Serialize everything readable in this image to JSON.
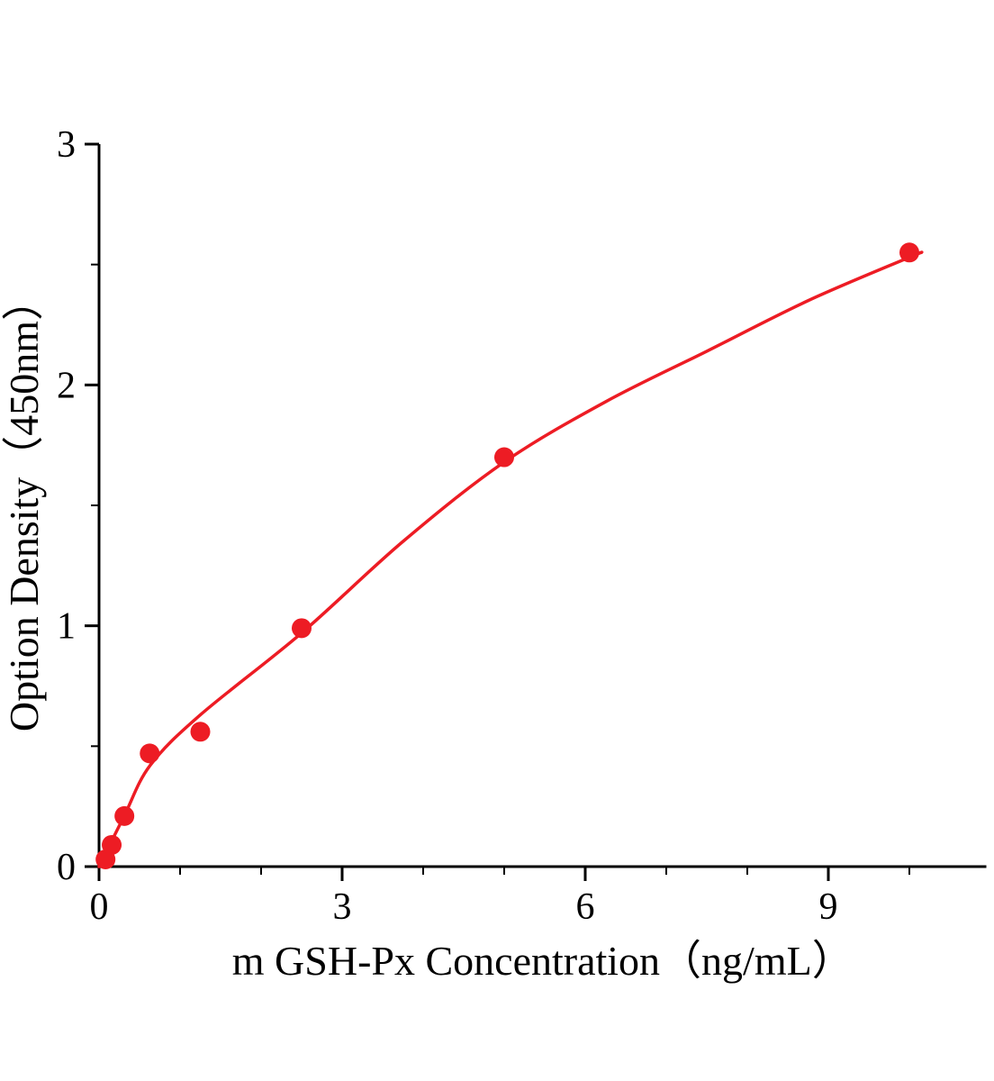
{
  "chart_data": {
    "type": "scatter",
    "title": "",
    "xlabel": "m GSH-Px Concentration（ng/mL）",
    "ylabel": "Option Density（450nm）",
    "xlim": [
      0,
      10.95
    ],
    "ylim": [
      0,
      3
    ],
    "xticks": [
      0,
      3,
      6,
      9
    ],
    "yticks": [
      0,
      1,
      2,
      3
    ],
    "x_minor_step": 1,
    "y_minor_step": 0.5,
    "grid": false,
    "legend": "none",
    "accent_color": "#ed1c24",
    "axis_color": "#000000",
    "points": [
      [
        0.08,
        0.03
      ],
      [
        0.156,
        0.09
      ],
      [
        0.313,
        0.21
      ],
      [
        0.625,
        0.47
      ],
      [
        1.25,
        0.56
      ],
      [
        2.5,
        0.99
      ],
      [
        5.0,
        1.7
      ],
      [
        10.0,
        2.55
      ]
    ],
    "curve_points": [
      [
        0,
        0
      ],
      [
        0.31,
        0.21
      ],
      [
        0.63,
        0.42
      ],
      [
        1.25,
        0.63
      ],
      [
        2.5,
        0.97
      ],
      [
        3.75,
        1.35
      ],
      [
        5.0,
        1.68
      ],
      [
        6.25,
        1.93
      ],
      [
        7.5,
        2.14
      ],
      [
        8.75,
        2.35
      ],
      [
        10.0,
        2.53
      ],
      [
        10.15,
        2.55
      ]
    ]
  },
  "layout_text": {
    "note": ""
  }
}
